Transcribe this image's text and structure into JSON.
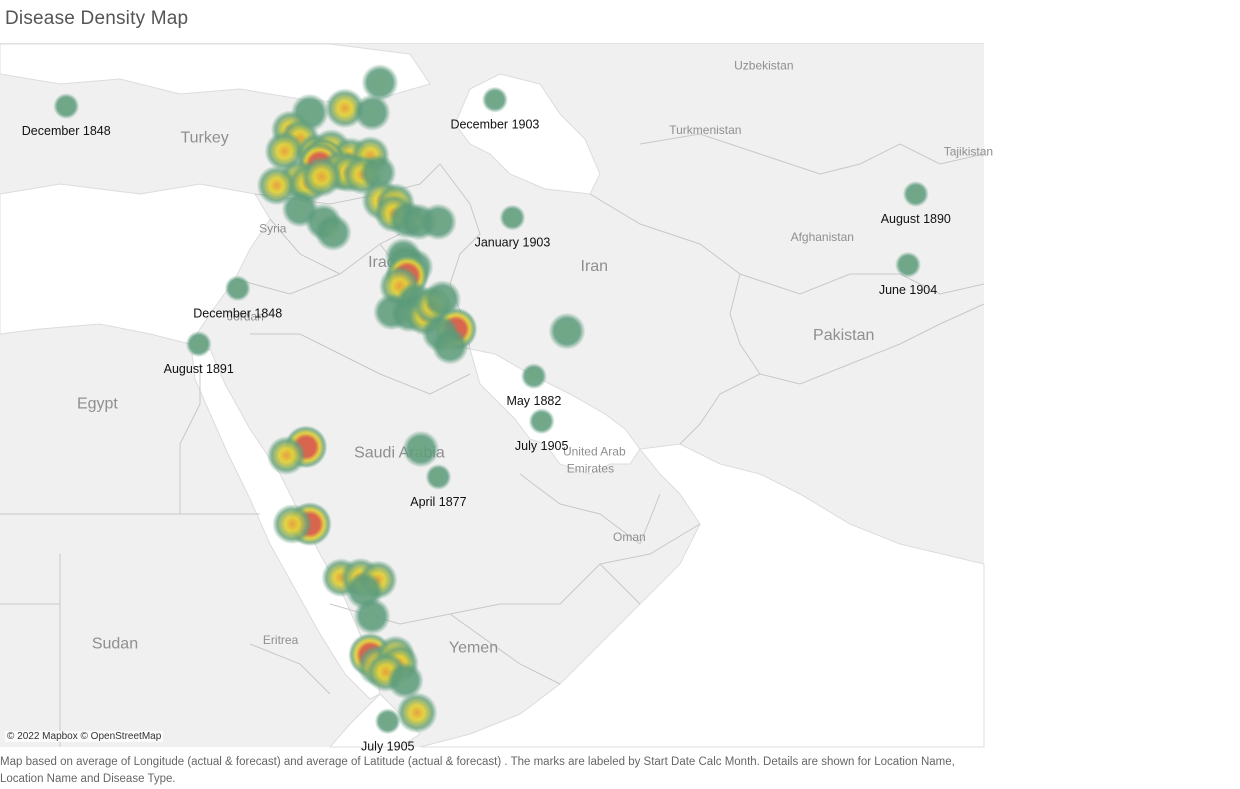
{
  "title": "Disease Density Map",
  "credit": "© 2022 Mapbox © OpenStreetMap",
  "footnote": "Map based on average of Longitude (actual & forecast)  and average of Latitude (actual & forecast) .  The marks are labeled by Start Date Calc Month.  Details are shown for Location Name, Location Name and Disease Type.",
  "colors": {
    "water": "#ffffff",
    "land": "#f0f0f0",
    "border": "#c8c8c8",
    "low": "#5a9a7a",
    "mid": "#e3d13a",
    "high": "#d9654f"
  },
  "map_bounds": {
    "lon": [
      25.0,
      75.5
    ],
    "lat": [
      11.0,
      43.8
    ]
  },
  "country_labels": [
    {
      "name": "Uzbekistan",
      "lon": 64.2,
      "lat": 42.6,
      "size": 12
    },
    {
      "name": "Turkey",
      "lon": 35.5,
      "lat": 39.2,
      "size": 16
    },
    {
      "name": "Turkmenistan",
      "lon": 61.2,
      "lat": 39.6,
      "size": 12
    },
    {
      "name": "Tajikistan",
      "lon": 74.7,
      "lat": 38.6,
      "size": 12
    },
    {
      "name": "Afghanistan",
      "lon": 67.2,
      "lat": 34.6,
      "size": 12
    },
    {
      "name": "Syria",
      "lon": 39.0,
      "lat": 35.0,
      "size": 12
    },
    {
      "name": "Iraq",
      "lon": 44.6,
      "lat": 33.4,
      "size": 16
    },
    {
      "name": "Iran",
      "lon": 55.5,
      "lat": 33.2,
      "size": 16
    },
    {
      "name": "Jordan",
      "lon": 37.6,
      "lat": 30.9,
      "size": 12
    },
    {
      "name": "Pakistan",
      "lon": 68.3,
      "lat": 30.0,
      "size": 16
    },
    {
      "name": "Egypt",
      "lon": 30.0,
      "lat": 26.8,
      "size": 16
    },
    {
      "name": "Saudi Arabia",
      "lon": 45.5,
      "lat": 24.5,
      "size": 16
    },
    {
      "name": "United Arab",
      "lon": 55.5,
      "lat": 24.6,
      "size": 12
    },
    {
      "name": "Emirates",
      "lon": 55.3,
      "lat": 23.8,
      "size": 12
    },
    {
      "name": "Oman",
      "lon": 57.3,
      "lat": 20.6,
      "size": 12
    },
    {
      "name": "Sudan",
      "lon": 30.9,
      "lat": 15.6,
      "size": 16
    },
    {
      "name": "Eritrea",
      "lon": 39.4,
      "lat": 15.8,
      "size": 12
    },
    {
      "name": "Yemen",
      "lon": 49.3,
      "lat": 15.4,
      "size": 16
    }
  ],
  "labeled_points": [
    {
      "label": "December 1848",
      "lon": 28.4,
      "lat": 40.9
    },
    {
      "label": "December 1903",
      "lon": 50.4,
      "lat": 41.2
    },
    {
      "label": "August 1890",
      "lon": 72.0,
      "lat": 36.8
    },
    {
      "label": "January 1903",
      "lon": 51.3,
      "lat": 35.7
    },
    {
      "label": "December 1848",
      "lon": 37.2,
      "lat": 32.4
    },
    {
      "label": "June 1904",
      "lon": 71.6,
      "lat": 33.5
    },
    {
      "label": "August 1891",
      "lon": 35.2,
      "lat": 29.8
    },
    {
      "label": "May 1882",
      "lon": 52.4,
      "lat": 28.3
    },
    {
      "label": "July 1905",
      "lon": 52.8,
      "lat": 26.2
    },
    {
      "label": "April 1877",
      "lon": 47.5,
      "lat": 23.6
    },
    {
      "label": "July 1905",
      "lon": 44.9,
      "lat": 12.2
    }
  ],
  "points": [
    {
      "lon": 44.5,
      "lat": 42.0,
      "w": 0.3
    },
    {
      "lon": 42.7,
      "lat": 40.8,
      "w": 0.6
    },
    {
      "lon": 44.1,
      "lat": 40.6,
      "w": 0.3
    },
    {
      "lon": 40.9,
      "lat": 40.6,
      "w": 0.4
    },
    {
      "lon": 39.9,
      "lat": 39.8,
      "w": 0.5
    },
    {
      "lon": 40.4,
      "lat": 39.4,
      "w": 0.5
    },
    {
      "lon": 39.6,
      "lat": 38.8,
      "w": 0.6
    },
    {
      "lon": 41.2,
      "lat": 38.7,
      "w": 0.6
    },
    {
      "lon": 42.0,
      "lat": 38.9,
      "w": 0.6
    },
    {
      "lon": 43.0,
      "lat": 38.5,
      "w": 0.7
    },
    {
      "lon": 44.0,
      "lat": 38.6,
      "w": 0.5
    },
    {
      "lon": 41.6,
      "lat": 38.4,
      "w": 0.9
    },
    {
      "lon": 41.4,
      "lat": 38.2,
      "w": 1.0
    },
    {
      "lon": 42.5,
      "lat": 37.9,
      "w": 0.8
    },
    {
      "lon": 42.9,
      "lat": 37.8,
      "w": 0.6
    },
    {
      "lon": 43.6,
      "lat": 37.7,
      "w": 0.6
    },
    {
      "lon": 40.3,
      "lat": 37.5,
      "w": 0.5
    },
    {
      "lon": 39.2,
      "lat": 37.2,
      "w": 0.6
    },
    {
      "lon": 40.8,
      "lat": 37.3,
      "w": 0.6
    },
    {
      "lon": 41.5,
      "lat": 37.6,
      "w": 0.7
    },
    {
      "lon": 44.4,
      "lat": 37.8,
      "w": 0.3
    },
    {
      "lon": 40.4,
      "lat": 36.1,
      "w": 0.3
    },
    {
      "lon": 44.6,
      "lat": 36.5,
      "w": 0.7
    },
    {
      "lon": 45.3,
      "lat": 36.4,
      "w": 0.5
    },
    {
      "lon": 45.2,
      "lat": 35.9,
      "w": 0.5
    },
    {
      "lon": 45.9,
      "lat": 35.6,
      "w": 0.4
    },
    {
      "lon": 46.5,
      "lat": 35.5,
      "w": 0.3
    },
    {
      "lon": 47.5,
      "lat": 35.5,
      "w": 0.3
    },
    {
      "lon": 41.6,
      "lat": 35.5,
      "w": 0.3
    },
    {
      "lon": 42.1,
      "lat": 35.0,
      "w": 0.3
    },
    {
      "lon": 45.7,
      "lat": 33.9,
      "w": 0.3
    },
    {
      "lon": 46.3,
      "lat": 33.4,
      "w": 0.3
    },
    {
      "lon": 45.8,
      "lat": 33.6,
      "w": 0.3
    },
    {
      "lon": 45.9,
      "lat": 33.0,
      "w": 1.0
    },
    {
      "lon": 45.5,
      "lat": 32.5,
      "w": 0.7
    },
    {
      "lon": 45.1,
      "lat": 31.3,
      "w": 0.3
    },
    {
      "lon": 46.3,
      "lat": 31.8,
      "w": 0.4
    },
    {
      "lon": 46.5,
      "lat": 31.4,
      "w": 0.4
    },
    {
      "lon": 46.0,
      "lat": 31.2,
      "w": 0.3
    },
    {
      "lon": 46.8,
      "lat": 31.1,
      "w": 0.5
    },
    {
      "lon": 47.2,
      "lat": 31.6,
      "w": 0.5
    },
    {
      "lon": 47.7,
      "lat": 31.9,
      "w": 0.4
    },
    {
      "lon": 48.4,
      "lat": 30.5,
      "w": 0.9
    },
    {
      "lon": 47.6,
      "lat": 30.3,
      "w": 0.4
    },
    {
      "lon": 48.1,
      "lat": 29.7,
      "w": 0.3
    },
    {
      "lon": 54.1,
      "lat": 30.4,
      "w": 0.3
    },
    {
      "lon": 40.7,
      "lat": 25.0,
      "w": 0.9
    },
    {
      "lon": 39.7,
      "lat": 24.6,
      "w": 0.5
    },
    {
      "lon": 46.6,
      "lat": 24.9,
      "w": 0.3
    },
    {
      "lon": 40.9,
      "lat": 21.4,
      "w": 1.0
    },
    {
      "lon": 40.0,
      "lat": 21.4,
      "w": 0.6
    },
    {
      "lon": 42.5,
      "lat": 18.9,
      "w": 0.5
    },
    {
      "lon": 43.5,
      "lat": 18.9,
      "w": 0.6
    },
    {
      "lon": 44.4,
      "lat": 18.8,
      "w": 0.5
    },
    {
      "lon": 43.7,
      "lat": 18.3,
      "w": 0.4
    },
    {
      "lon": 44.1,
      "lat": 17.1,
      "w": 0.3
    },
    {
      "lon": 44.0,
      "lat": 15.3,
      "w": 1.0
    },
    {
      "lon": 44.4,
      "lat": 14.8,
      "w": 0.8
    },
    {
      "lon": 45.3,
      "lat": 15.3,
      "w": 0.5
    },
    {
      "lon": 45.5,
      "lat": 14.9,
      "w": 0.5
    },
    {
      "lon": 44.8,
      "lat": 14.5,
      "w": 0.6
    },
    {
      "lon": 45.8,
      "lat": 14.1,
      "w": 0.3
    },
    {
      "lon": 46.4,
      "lat": 12.6,
      "w": 0.7
    }
  ]
}
